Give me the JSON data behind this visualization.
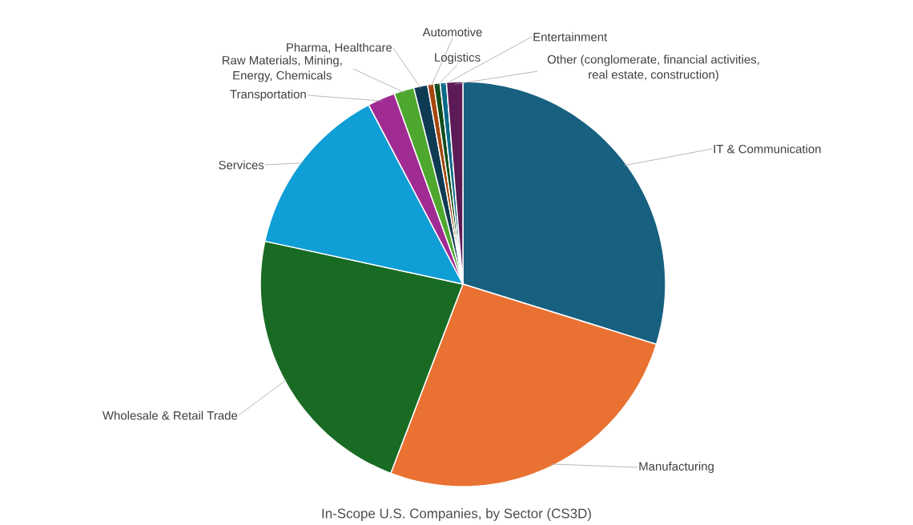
{
  "chart_data": {
    "type": "pie",
    "title": "In-Scope U.S. Companies, by Sector (CS3D)",
    "categories": [
      "IT & Communication",
      "Manufacturing",
      "Wholesale & Retail Trade",
      "Services",
      "Transportation",
      "Raw Materials, Mining, Energy, Chemicals",
      "Pharma, Healthcare",
      "Automotive",
      "Logistics",
      "Entertainment",
      "Other (conglomerate, financial activities, real estate, construction)"
    ],
    "values": [
      29.8,
      26.0,
      22.6,
      13.9,
      2.2,
      1.6,
      1.1,
      0.5,
      0.5,
      0.5,
      1.3
    ],
    "colors": [
      "#17607f",
      "#e97132",
      "#196b24",
      "#0f9ed5",
      "#a02b93",
      "#4ea72e",
      "#0e3a52",
      "#a5460f",
      "#0f4d1b",
      "#0b6a8a",
      "#5c1a56"
    ]
  }
}
